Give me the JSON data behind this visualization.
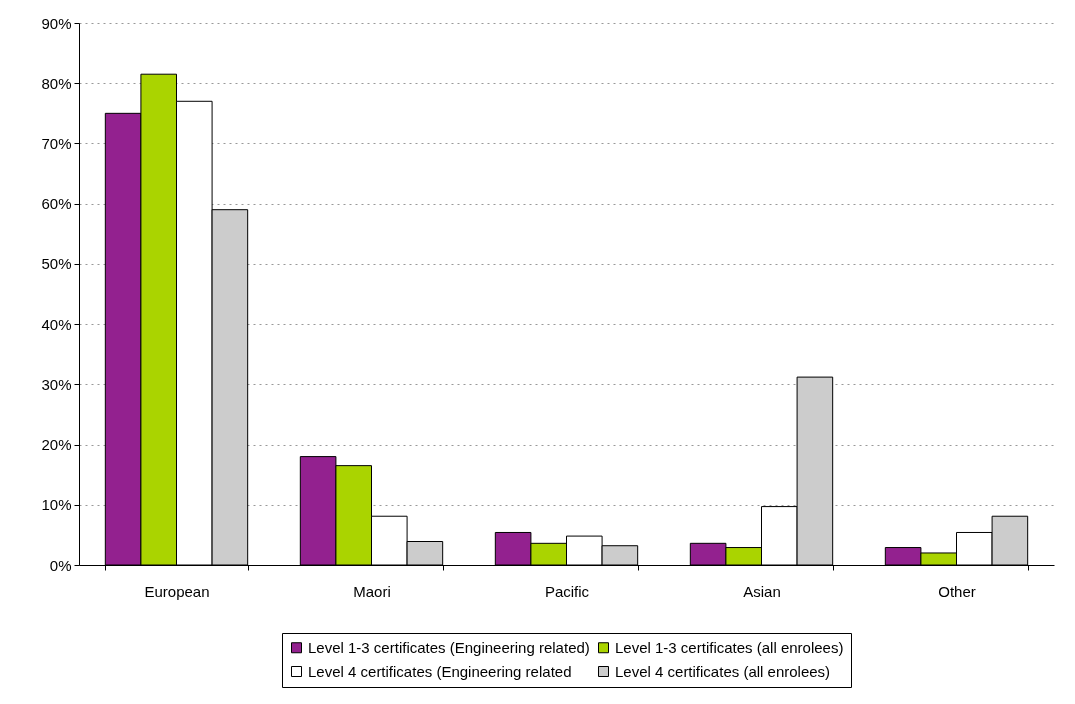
{
  "chart_data": {
    "type": "bar",
    "categories": [
      "European",
      "Maori",
      "Pacific",
      "Asian",
      "Other"
    ],
    "series": [
      {
        "name": "Level 1-3 certificates (Engineering related)",
        "color": "#93218f",
        "values": [
          75,
          18,
          5.4,
          3.6,
          2.9
        ]
      },
      {
        "name": "Level 1-3 certificates (all enrolees)",
        "color": "#aad400",
        "values": [
          81.5,
          16.5,
          3.6,
          2.9,
          2.0
        ]
      },
      {
        "name": "Level 4 certificates (Engineering related",
        "color": "#ffffff",
        "values": [
          77,
          8.1,
          4.8,
          9.7,
          5.4
        ]
      },
      {
        "name": "Level 4 certificates (all enrolees)",
        "color": "#cccccc",
        "values": [
          59,
          3.9,
          3.2,
          31.2,
          8.1
        ]
      }
    ],
    "ylim": [
      0,
      90
    ],
    "yticks": [
      {
        "value": 0,
        "label": "0%"
      },
      {
        "value": 10,
        "label": "10%"
      },
      {
        "value": 20,
        "label": "20%"
      },
      {
        "value": 30,
        "label": "30%"
      },
      {
        "value": 40,
        "label": "40%"
      },
      {
        "value": 50,
        "label": "50%"
      },
      {
        "value": 60,
        "label": "60%"
      },
      {
        "value": 70,
        "label": "70%"
      },
      {
        "value": 80,
        "label": "80%"
      },
      {
        "value": 90,
        "label": "90%"
      }
    ],
    "grid": "y",
    "legend": "bottom"
  }
}
